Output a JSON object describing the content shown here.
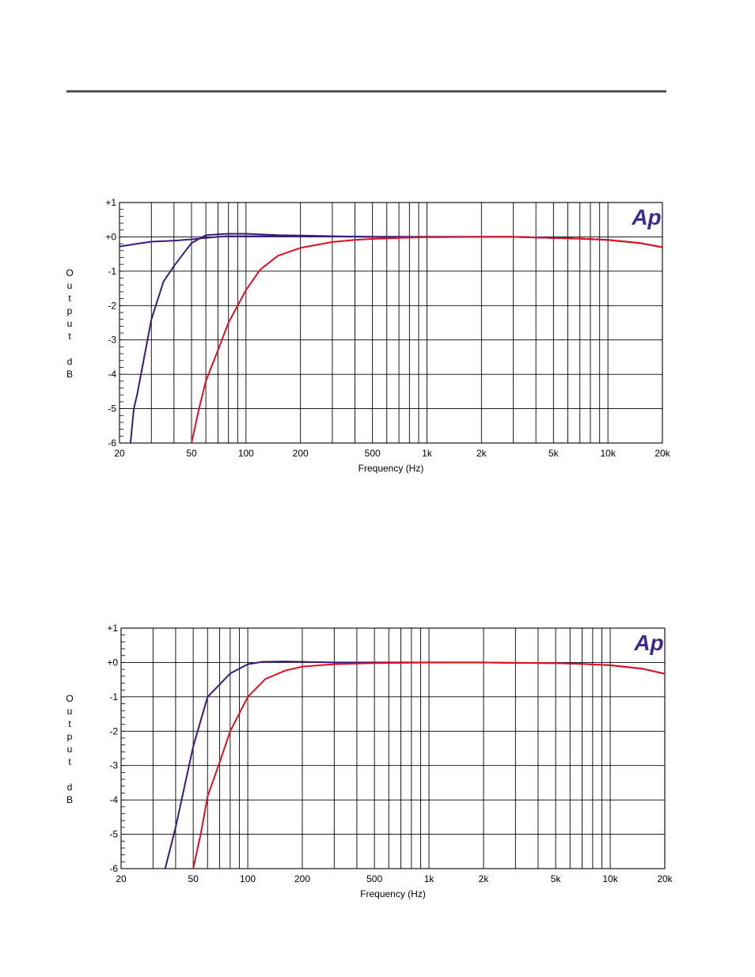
{
  "chart_data": [
    {
      "type": "line",
      "xlabel": "Frequency (Hz)",
      "ylabel": "Output dB",
      "xscale": "log",
      "xlim": [
        20,
        20000
      ],
      "ylim": [
        -6,
        1
      ],
      "xticks": [
        20,
        50,
        100,
        200,
        500,
        1000,
        2000,
        5000,
        10000,
        20000
      ],
      "xtick_labels": [
        "20",
        "50",
        "100",
        "200",
        "500",
        "1k",
        "2k",
        "5k",
        "10k",
        "20k"
      ],
      "yticks": [
        1,
        0,
        -1,
        -2,
        -3,
        -4,
        -5,
        -6
      ],
      "ytick_labels": [
        "+1",
        "+0",
        "-1",
        "-2",
        "-3",
        "-4",
        "-5",
        "-6"
      ],
      "grid": true,
      "logo": "Ap",
      "series": [
        {
          "color": "#3a1a7a",
          "x": [
            20,
            23,
            24,
            25,
            30,
            35,
            40,
            50,
            60,
            80,
            100,
            150,
            200,
            300,
            500,
            1000,
            2000,
            3000,
            5000,
            7000,
            10000,
            15000,
            20000
          ],
          "y": [
            -6.5,
            -6.0,
            -5.0,
            -4.6,
            -2.4,
            -1.3,
            -0.85,
            -0.18,
            0.05,
            0.09,
            0.09,
            0.05,
            0.04,
            0.02,
            0.0,
            0.0,
            0.0,
            0.0,
            -0.03,
            -0.05,
            -0.09,
            -0.18,
            -0.3
          ]
        },
        {
          "color": "#3a1a7a",
          "x": [
            20,
            25,
            30,
            40,
            50,
            60,
            70,
            80,
            100,
            150,
            200,
            300,
            500,
            1000,
            2000,
            3000,
            5000,
            7000,
            10000,
            15000,
            20000
          ],
          "y": [
            -0.28,
            -0.2,
            -0.14,
            -0.11,
            -0.07,
            -0.03,
            0.0,
            0.02,
            0.02,
            0.02,
            0.02,
            0.01,
            0.0,
            0.0,
            0.0,
            0.0,
            -0.03,
            -0.05,
            -0.09,
            -0.18,
            -0.3
          ]
        },
        {
          "color": "#dd1122",
          "x": [
            50,
            55,
            60,
            70,
            80,
            100,
            120,
            150,
            200,
            300,
            400,
            500,
            700,
            1000,
            2000,
            3000,
            5000,
            7000,
            10000,
            15000,
            20000
          ],
          "y": [
            -6.0,
            -5.0,
            -4.2,
            -3.3,
            -2.5,
            -1.55,
            -0.95,
            -0.55,
            -0.32,
            -0.15,
            -0.09,
            -0.06,
            -0.03,
            -0.01,
            0.0,
            0.0,
            -0.03,
            -0.05,
            -0.09,
            -0.18,
            -0.3
          ]
        }
      ]
    },
    {
      "type": "line",
      "xlabel": "Frequency (Hz)",
      "ylabel": "Output dB",
      "xscale": "log",
      "xlim": [
        20,
        20000
      ],
      "ylim": [
        -6,
        1
      ],
      "xticks": [
        20,
        50,
        100,
        200,
        500,
        1000,
        2000,
        5000,
        10000,
        20000
      ],
      "xtick_labels": [
        "20",
        "50",
        "100",
        "200",
        "500",
        "1k",
        "2k",
        "5k",
        "10k",
        "20k"
      ],
      "yticks": [
        1,
        0,
        -1,
        -2,
        -3,
        -4,
        -5,
        -6
      ],
      "ytick_labels": [
        "+1",
        "+0",
        "-1",
        "-2",
        "-3",
        "-4",
        "-5",
        "-6"
      ],
      "grid": true,
      "logo": "Ap",
      "series": [
        {
          "color": "#3a1a7a",
          "x": [
            35,
            40,
            50,
            60,
            80,
            100,
            120,
            160,
            200,
            300,
            500,
            1000,
            2000,
            3000,
            5000,
            7000,
            10000,
            15000,
            20000
          ],
          "y": [
            -6.0,
            -4.8,
            -2.45,
            -1.0,
            -0.32,
            -0.05,
            0.02,
            0.03,
            0.02,
            0.0,
            0.0,
            0.0,
            0.0,
            -0.01,
            -0.02,
            -0.04,
            -0.08,
            -0.18,
            -0.33
          ]
        },
        {
          "color": "#dd1122",
          "x": [
            50,
            55,
            60,
            70,
            80,
            100,
            125,
            160,
            200,
            300,
            500,
            1000,
            2000,
            3000,
            5000,
            7000,
            10000,
            15000,
            20000
          ],
          "y": [
            -6.0,
            -5.0,
            -3.9,
            -2.9,
            -2.0,
            -1.0,
            -0.48,
            -0.24,
            -0.12,
            -0.05,
            -0.02,
            0.0,
            0.0,
            -0.01,
            -0.02,
            -0.04,
            -0.08,
            -0.18,
            -0.33
          ]
        }
      ]
    }
  ]
}
